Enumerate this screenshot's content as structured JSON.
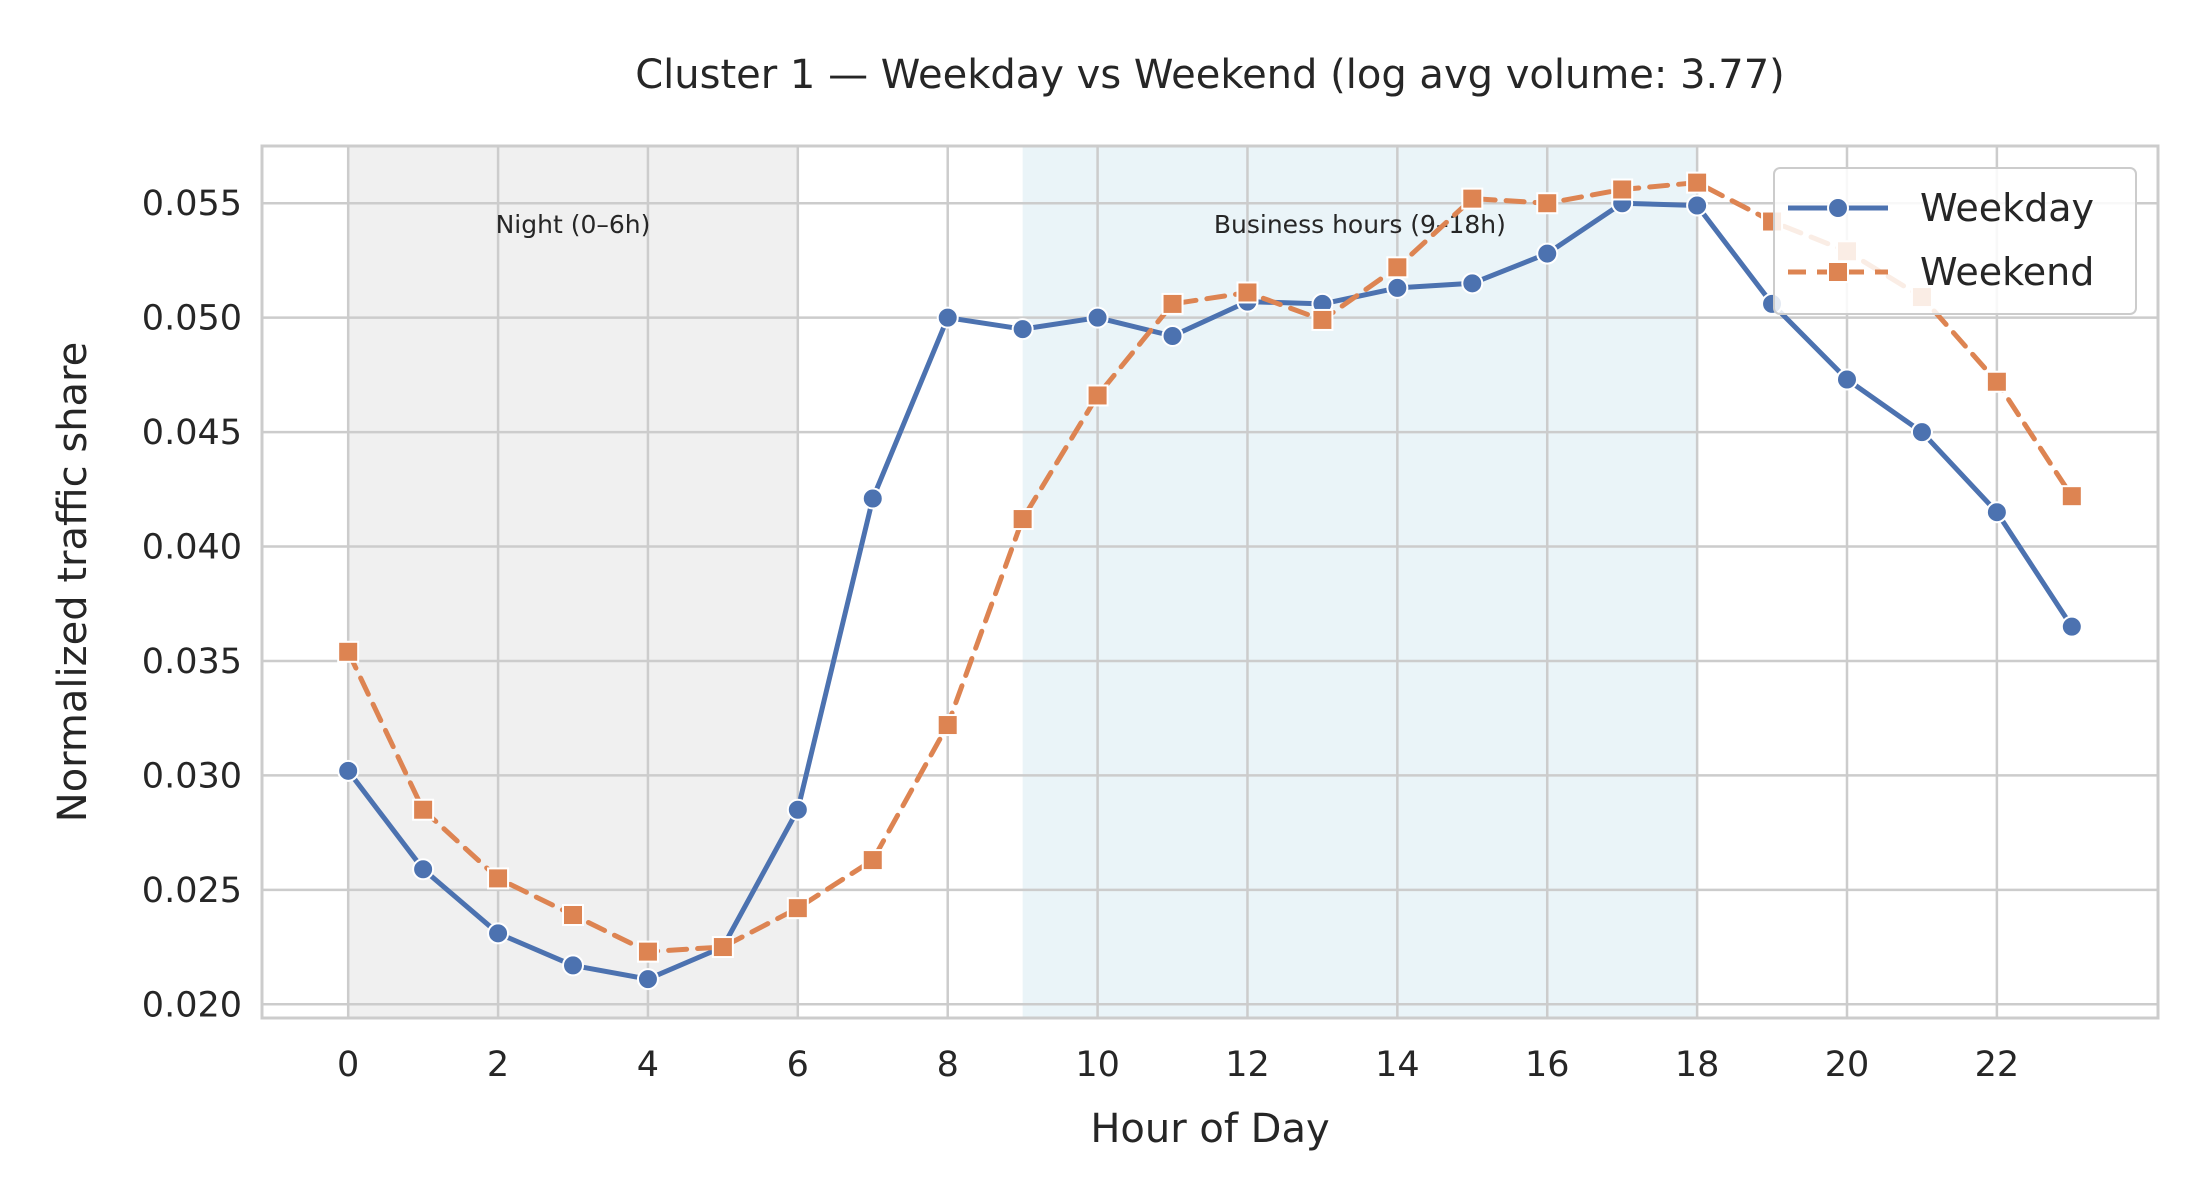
{
  "chart_data": {
    "type": "line",
    "title": "Cluster 1 — Weekday vs Weekend (log avg volume: 3.77)",
    "xlabel": "Hour of Day",
    "ylabel": "Normalized traffic share",
    "x": [
      0,
      1,
      2,
      3,
      4,
      5,
      6,
      7,
      8,
      9,
      10,
      11,
      12,
      13,
      14,
      15,
      16,
      17,
      18,
      19,
      20,
      21,
      22,
      23
    ],
    "xlim": [
      -1.15,
      24.15
    ],
    "ylim": [
      0.0194,
      0.0575
    ],
    "xticks": [
      0,
      2,
      4,
      6,
      8,
      10,
      12,
      14,
      16,
      18,
      20,
      22
    ],
    "xtick_labels": [
      "0",
      "2",
      "4",
      "6",
      "8",
      "10",
      "12",
      "14",
      "16",
      "18",
      "20",
      "22"
    ],
    "yticks": [
      0.02,
      0.025,
      0.03,
      0.035,
      0.04,
      0.045,
      0.05,
      0.055
    ],
    "ytick_labels": [
      "0.020",
      "0.025",
      "0.030",
      "0.035",
      "0.040",
      "0.045",
      "0.050",
      "0.055"
    ],
    "grid": true,
    "legend_position": "top-right",
    "shaded_regions": [
      {
        "label": "Night (0–6h)",
        "x_start": 0,
        "x_end": 6,
        "color": "#f0f0f0"
      },
      {
        "label": "Business hours (9–18h)",
        "x_start": 9,
        "x_end": 18,
        "color": "#eaf4f8"
      }
    ],
    "series": [
      {
        "name": "Weekday",
        "color": "#4c72b0",
        "marker": "circle",
        "line_style": "solid",
        "values": [
          0.0302,
          0.0259,
          0.0231,
          0.0217,
          0.0211,
          0.0225,
          0.0285,
          0.0421,
          0.05,
          0.0495,
          0.05,
          0.0492,
          0.0507,
          0.0506,
          0.0513,
          0.0515,
          0.0528,
          0.055,
          0.0549,
          0.0506,
          0.0473,
          0.045,
          0.0415,
          0.0365
        ]
      },
      {
        "name": "Weekend",
        "color": "#dd8452",
        "marker": "square",
        "line_style": "dashed",
        "values": [
          0.0354,
          0.0285,
          0.0255,
          0.0239,
          0.0223,
          0.0225,
          0.0242,
          0.0263,
          0.0322,
          0.0412,
          0.0466,
          0.0506,
          0.0511,
          0.0499,
          0.0522,
          0.0552,
          0.055,
          0.0556,
          0.0559,
          0.0542,
          0.0529,
          0.0509,
          0.0472,
          0.0422
        ]
      }
    ]
  }
}
